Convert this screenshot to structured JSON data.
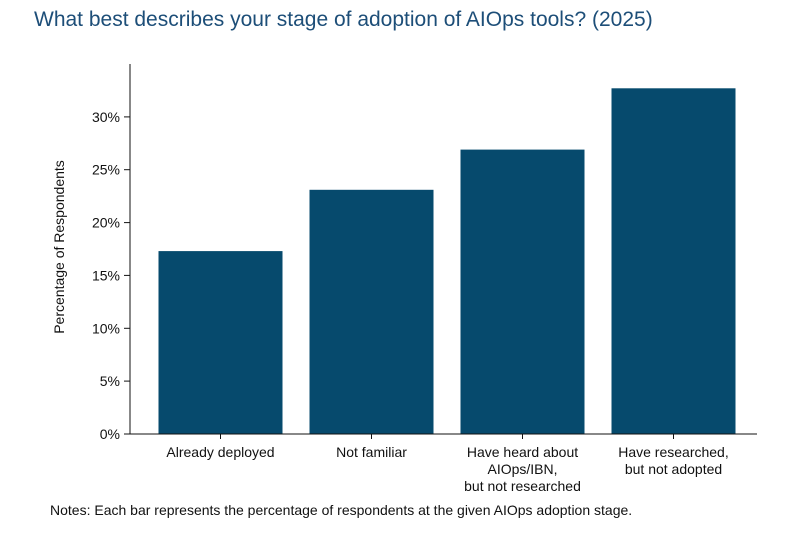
{
  "chart_data": {
    "type": "bar",
    "title": "What best describes your stage of adoption of AIOps tools? (2025)",
    "xlabel": "",
    "ylabel": "Percentage of Respondents",
    "categories": [
      [
        "Already deployed"
      ],
      [
        "Not familiar"
      ],
      [
        "Have heard about",
        "AIOps/IBN,",
        "but not researched"
      ],
      [
        "Have researched,",
        "but not adopted"
      ]
    ],
    "values": [
      17.3,
      23.1,
      26.9,
      32.7
    ],
    "ylim": [
      0,
      35
    ],
    "yticks": [
      0,
      5,
      10,
      15,
      20,
      25,
      30
    ],
    "ytick_labels": [
      "0%",
      "5%",
      "10%",
      "15%",
      "20%",
      "25%",
      "30%"
    ],
    "grid": false,
    "legend": "none",
    "bar_color": "#064a6d"
  },
  "notes": "Notes: Each bar represents the percentage of respondents at the given AIOps adoption stage."
}
